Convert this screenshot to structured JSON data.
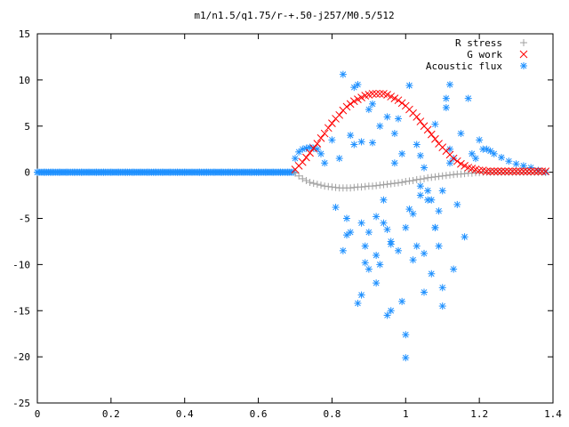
{
  "chart_data": {
    "type": "scatter",
    "title": "m1/n1.5/q1.75/r-+.50-j257/M0.5/512",
    "xlabel": "",
    "ylabel": "",
    "xlim": [
      0,
      1.4
    ],
    "ylim": [
      -25,
      15
    ],
    "x_ticks": [
      0,
      0.2,
      0.4,
      0.6,
      0.8,
      1,
      1.2,
      1.4
    ],
    "y_ticks": [
      15,
      10,
      5,
      0,
      -5,
      -10,
      -15,
      -20,
      -25
    ],
    "legend_position": "top-right",
    "grid": false,
    "series": [
      {
        "name": "R stress",
        "marker": "plus",
        "color": "#a0a0a0",
        "x": [
          0.7,
          0.71,
          0.72,
          0.73,
          0.74,
          0.75,
          0.76,
          0.77,
          0.78,
          0.79,
          0.8,
          0.81,
          0.82,
          0.83,
          0.84,
          0.85,
          0.86,
          0.87,
          0.88,
          0.89,
          0.9,
          0.91,
          0.92,
          0.93,
          0.94,
          0.95,
          0.96,
          0.97,
          0.98,
          0.99,
          1.0,
          1.01,
          1.02,
          1.03,
          1.04,
          1.05,
          1.06,
          1.07,
          1.08,
          1.09,
          1.1,
          1.11,
          1.12,
          1.13,
          1.14,
          1.15,
          1.16,
          1.17,
          1.18,
          1.19,
          1.2,
          1.21,
          1.22,
          1.23,
          1.24,
          1.25,
          1.26,
          1.27,
          1.28,
          1.29,
          1.3,
          1.31,
          1.32,
          1.33,
          1.34,
          1.35,
          1.36,
          1.37,
          1.38
        ],
        "y": [
          -0.1,
          -0.4,
          -0.7,
          -0.9,
          -1.1,
          -1.2,
          -1.3,
          -1.4,
          -1.5,
          -1.55,
          -1.6,
          -1.65,
          -1.7,
          -1.7,
          -1.7,
          -1.7,
          -1.65,
          -1.6,
          -1.6,
          -1.55,
          -1.5,
          -1.5,
          -1.45,
          -1.4,
          -1.35,
          -1.3,
          -1.25,
          -1.2,
          -1.15,
          -1.1,
          -1.0,
          -0.95,
          -0.9,
          -0.8,
          -0.75,
          -0.7,
          -0.6,
          -0.55,
          -0.5,
          -0.45,
          -0.4,
          -0.35,
          -0.3,
          -0.25,
          -0.2,
          -0.2,
          -0.15,
          -0.1,
          -0.1,
          -0.05,
          -0.05,
          0,
          0,
          0,
          0,
          0,
          0,
          0,
          0,
          0,
          0,
          0,
          0,
          0,
          0,
          0,
          0,
          0,
          0
        ]
      },
      {
        "name": "G work",
        "marker": "cross",
        "color": "#ff0000",
        "x": [
          0.7,
          0.71,
          0.72,
          0.73,
          0.74,
          0.75,
          0.76,
          0.77,
          0.78,
          0.79,
          0.8,
          0.81,
          0.82,
          0.83,
          0.84,
          0.85,
          0.86,
          0.87,
          0.88,
          0.89,
          0.9,
          0.91,
          0.92,
          0.93,
          0.94,
          0.95,
          0.96,
          0.97,
          0.98,
          0.99,
          1.0,
          1.01,
          1.02,
          1.03,
          1.04,
          1.05,
          1.06,
          1.07,
          1.08,
          1.09,
          1.1,
          1.11,
          1.12,
          1.13,
          1.14,
          1.15,
          1.16,
          1.17,
          1.18,
          1.19,
          1.2,
          1.21,
          1.22,
          1.23,
          1.24,
          1.25,
          1.26,
          1.27,
          1.28,
          1.29,
          1.3,
          1.31,
          1.32,
          1.33,
          1.34,
          1.35,
          1.36,
          1.37,
          1.38
        ],
        "y": [
          0.3,
          0.7,
          1.1,
          1.6,
          2.1,
          2.6,
          3.1,
          3.7,
          4.2,
          4.8,
          5.3,
          5.8,
          6.2,
          6.7,
          7.1,
          7.4,
          7.7,
          7.9,
          8.1,
          8.3,
          8.4,
          8.5,
          8.5,
          8.5,
          8.5,
          8.4,
          8.2,
          8.0,
          7.8,
          7.5,
          7.2,
          6.8,
          6.4,
          6.0,
          5.5,
          5.0,
          4.6,
          4.1,
          3.6,
          3.1,
          2.7,
          2.3,
          1.9,
          1.5,
          1.2,
          0.9,
          0.7,
          0.5,
          0.4,
          0.3,
          0.2,
          0.2,
          0.1,
          0.1,
          0.1,
          0.1,
          0.1,
          0.1,
          0.1,
          0.1,
          0.1,
          0.1,
          0.1,
          0.1,
          0.1,
          0.1,
          0.1,
          0.1,
          0.1
        ]
      },
      {
        "name": "Acoustic flux",
        "marker": "star",
        "color": "#1e90ff",
        "x": [
          0.0,
          0.02,
          0.04,
          0.06,
          0.08,
          0.1,
          0.12,
          0.14,
          0.16,
          0.18,
          0.2,
          0.22,
          0.24,
          0.26,
          0.28,
          0.3,
          0.32,
          0.34,
          0.36,
          0.38,
          0.4,
          0.42,
          0.44,
          0.46,
          0.48,
          0.5,
          0.52,
          0.54,
          0.56,
          0.58,
          0.6,
          0.62,
          0.64,
          0.66,
          0.68,
          0.7,
          0.71,
          0.72,
          0.73,
          0.74,
          0.75,
          0.76,
          0.77,
          0.78,
          0.8,
          0.81,
          0.82,
          0.83,
          0.84,
          0.85,
          0.86,
          0.87,
          0.88,
          0.89,
          0.9,
          0.91,
          0.92,
          0.93,
          0.94,
          0.95,
          0.96,
          0.97,
          0.98,
          0.99,
          1.0,
          1.01,
          1.02,
          1.03,
          1.04,
          1.05,
          1.06,
          1.07,
          1.08,
          1.09,
          1.1,
          1.11,
          1.12,
          1.13,
          1.14,
          1.15,
          1.16,
          1.17,
          1.18,
          1.19,
          1.2,
          1.21,
          1.22,
          1.23,
          1.24,
          1.26,
          1.28,
          1.3,
          1.32,
          1.34,
          1.36,
          1.38,
          0.83,
          0.86,
          0.88,
          0.9,
          0.92,
          0.94,
          0.96,
          0.98,
          1.0,
          1.02,
          1.04,
          1.06,
          1.08,
          1.1,
          1.12,
          0.84,
          0.87,
          0.89,
          0.91,
          0.93,
          0.95,
          0.97,
          0.99,
          1.01,
          1.03,
          1.05,
          1.07,
          1.09,
          1.11,
          1.13,
          0.85,
          0.9,
          0.95,
          1.0,
          1.05,
          1.1,
          0.88,
          0.92,
          0.96,
          1.04,
          1.08,
          1.12
        ],
        "y": [
          0,
          0,
          0,
          0,
          0,
          0,
          0,
          0,
          0,
          0,
          0,
          0,
          0,
          0,
          0,
          0,
          0,
          0,
          0,
          0,
          0,
          0,
          0,
          0,
          0,
          0,
          0,
          0,
          0,
          0,
          0,
          0,
          0,
          0,
          0,
          1.5,
          2.2,
          2.5,
          2.6,
          2.7,
          2.6,
          2.5,
          2.0,
          1.0,
          3.5,
          -3.8,
          1.5,
          10.6,
          -6.8,
          4.0,
          9.2,
          -14.2,
          3.3,
          -8.0,
          -6.5,
          7.4,
          -9.0,
          5.0,
          -5.5,
          6.0,
          -7.8,
          4.2,
          -8.5,
          2.0,
          -6.0,
          9.4,
          -4.5,
          3.0,
          -2.5,
          -8.8,
          -3.0,
          -11.0,
          5.2,
          -4.2,
          -2.0,
          7.0,
          9.5,
          1.5,
          -3.5,
          4.2,
          -7.0,
          8.0,
          2.0,
          1.5,
          3.5,
          2.5,
          2.5,
          2.3,
          2.0,
          1.6,
          1.2,
          0.9,
          0.7,
          0.5,
          0.2,
          0,
          -8.5,
          3.0,
          -5.5,
          6.8,
          -12.0,
          -3.0,
          -15.0,
          5.8,
          -20.1,
          -9.5,
          1.8,
          -2.0,
          -6.0,
          -12.5,
          2.5,
          -5.0,
          9.5,
          -9.8,
          3.2,
          -10.0,
          -6.2,
          1.0,
          -14.0,
          -4.0,
          -8.0,
          0.5,
          -3.0,
          -8.0,
          8.0,
          -10.5,
          -6.5,
          -10.5,
          -15.5,
          -17.6,
          -13.0,
          -14.5,
          -13.3,
          -4.8,
          -7.5,
          -1.5,
          -6.0,
          1.0
        ]
      }
    ]
  }
}
